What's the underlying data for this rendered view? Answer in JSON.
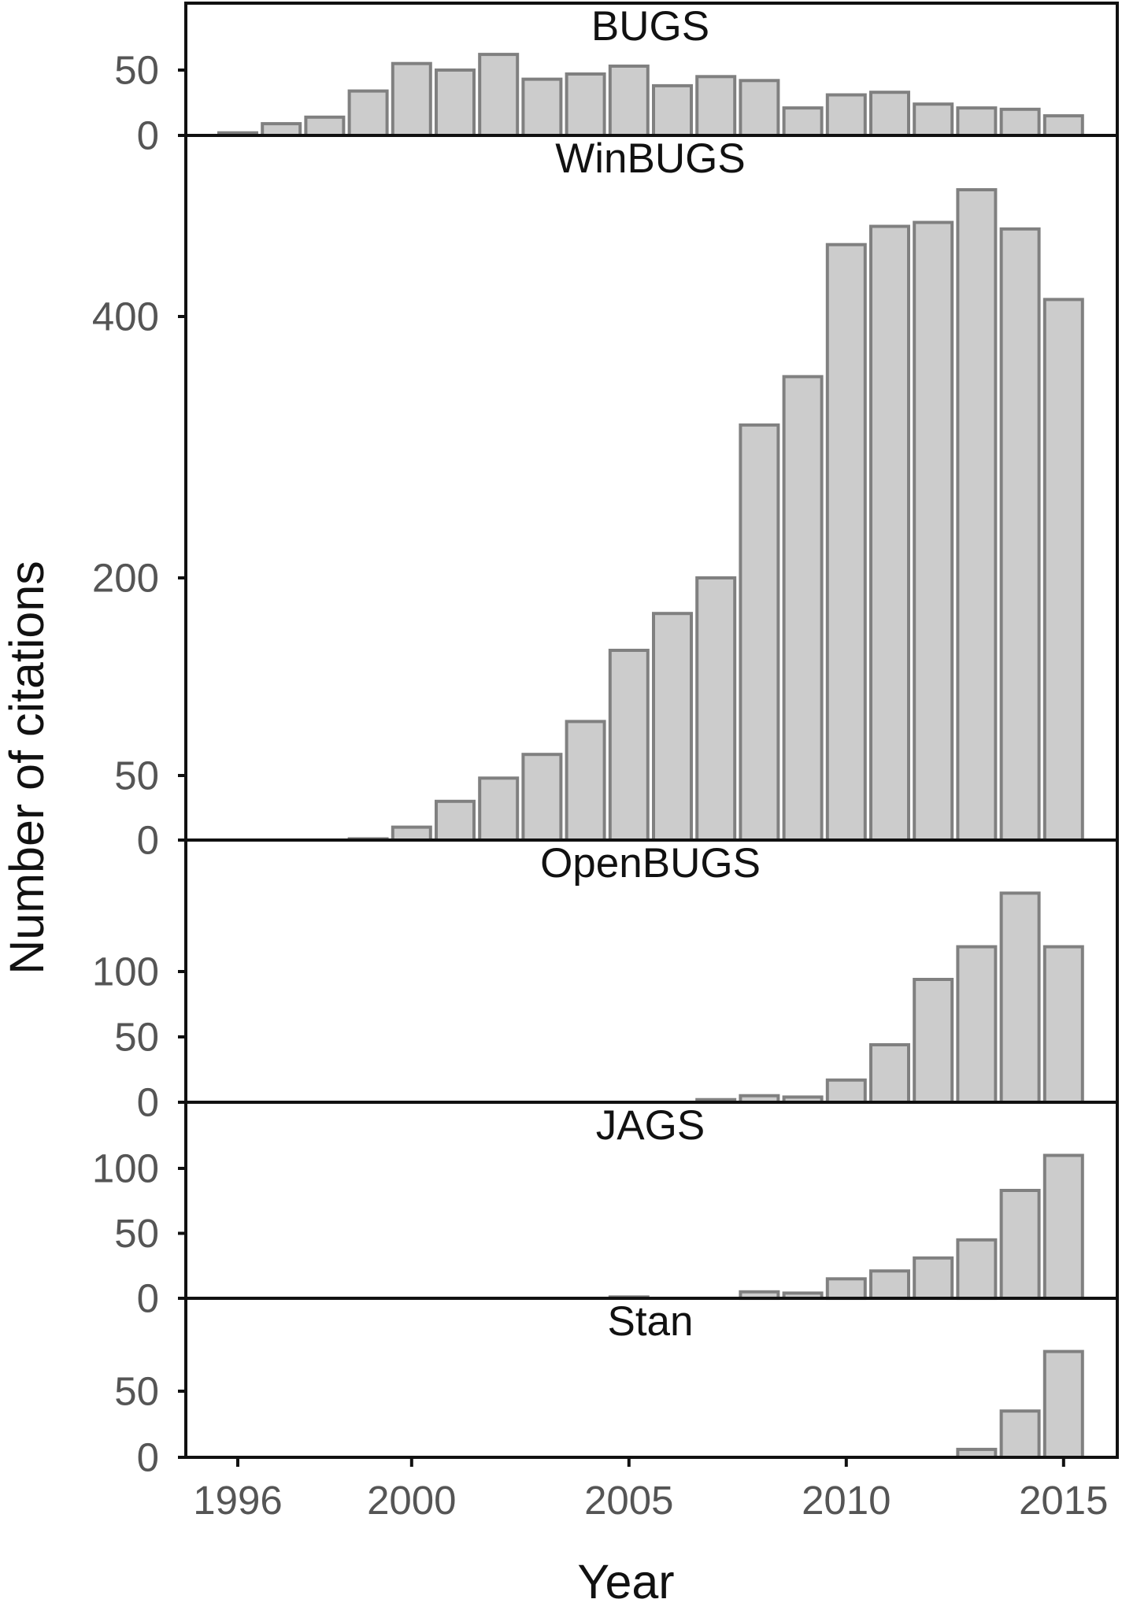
{
  "chart_data": {
    "type": "bar",
    "layout": "stacked-panels",
    "xlabel": "Year",
    "ylabel": "Number of citations",
    "x_ticks": [
      1996,
      2000,
      2005,
      2010,
      2015
    ],
    "years": [
      1996,
      1997,
      1998,
      1999,
      2000,
      2001,
      2002,
      2003,
      2004,
      2005,
      2006,
      2007,
      2008,
      2009,
      2010,
      2011,
      2012,
      2013,
      2014,
      2015
    ],
    "bar_fill": "#cccccc",
    "bar_edge": "#808080",
    "panels": [
      {
        "title": "BUGS",
        "y_ticks": [
          0,
          50
        ],
        "ylim": [
          0,
          100
        ],
        "values": [
          2,
          9,
          14,
          34,
          55,
          50,
          62,
          43,
          47,
          53,
          38,
          45,
          42,
          21,
          31,
          33,
          24,
          21,
          20,
          15
        ]
      },
      {
        "title": "WinBUGS",
        "y_ticks": [
          0,
          50,
          200,
          400
        ],
        "ylim": [
          0,
          540
        ],
        "values": [
          0,
          0,
          0,
          1,
          10,
          30,
          48,
          66,
          91,
          145,
          173,
          200,
          317,
          354,
          455,
          469,
          472,
          497,
          467,
          413
        ]
      },
      {
        "title": "OpenBUGS",
        "y_ticks": [
          0,
          50,
          100
        ],
        "ylim": [
          0,
          200
        ],
        "values": [
          0,
          0,
          0,
          0,
          0,
          0,
          0,
          0,
          0,
          0,
          0,
          2,
          5,
          4,
          17,
          44,
          94,
          119,
          160,
          119
        ]
      },
      {
        "title": "JAGS",
        "y_ticks": [
          0,
          50,
          100
        ],
        "ylim": [
          0,
          150
        ],
        "values": [
          0,
          0,
          0,
          0,
          0,
          0,
          0,
          0,
          0,
          1,
          0,
          0,
          5,
          4,
          15,
          21,
          31,
          45,
          83,
          110
        ]
      },
      {
        "title": "Stan",
        "y_ticks": [
          0,
          50
        ],
        "ylim": [
          0,
          118
        ],
        "values": [
          0,
          0,
          0,
          0,
          0,
          0,
          0,
          0,
          0,
          0,
          0,
          0,
          0,
          0,
          0,
          0,
          0,
          6,
          35,
          80
        ]
      }
    ]
  }
}
